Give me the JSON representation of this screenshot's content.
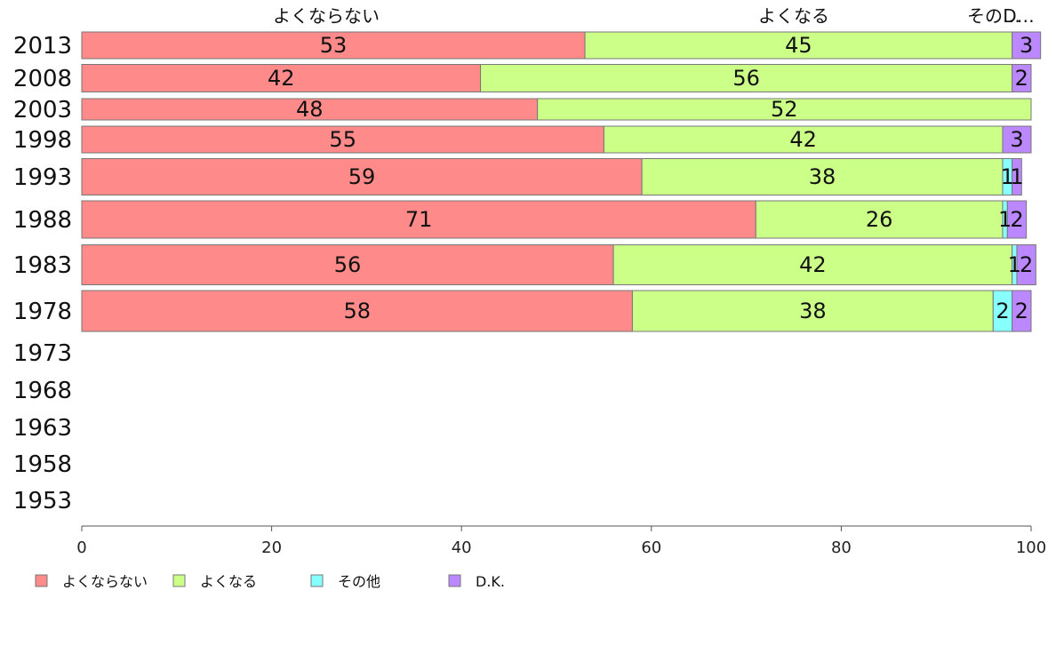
{
  "chart_data": {
    "type": "bar",
    "orientation": "horizontal",
    "stacked": true,
    "categories": [
      "2013",
      "2008",
      "2003",
      "1998",
      "1993",
      "1988",
      "1983",
      "1978",
      "1973",
      "1968",
      "1963",
      "1958",
      "1953"
    ],
    "series": [
      {
        "name": "よくならない",
        "color": "#ff8a8a",
        "values": [
          53,
          42,
          48,
          55,
          59,
          71,
          56,
          58,
          null,
          null,
          null,
          null,
          null
        ]
      },
      {
        "name": "よくなる",
        "color": "#ccff88",
        "values": [
          45,
          56,
          52,
          42,
          38,
          26,
          42,
          38,
          null,
          null,
          null,
          null,
          null
        ]
      },
      {
        "name": "その他",
        "color": "#88ffff",
        "values": [
          0,
          0,
          0,
          0,
          1,
          0.5,
          0.5,
          2,
          null,
          null,
          null,
          null,
          null
        ]
      },
      {
        "name": "D.K.",
        "color": "#bb88ff",
        "values": [
          3,
          2,
          0,
          3,
          1,
          2,
          2,
          2,
          null,
          null,
          null,
          null,
          null
        ]
      }
    ],
    "bar_labels": {
      "よくならない": [
        "53",
        "42",
        "48",
        "55",
        "59",
        "71",
        "56",
        "58"
      ],
      "よくなる": [
        "45",
        "56",
        "52",
        "42",
        "38",
        "26",
        "42",
        "38"
      ],
      "その他": [
        "",
        "",
        "",
        "",
        "1",
        "1",
        "1",
        "2"
      ],
      "D.K.": [
        "3",
        "2",
        "",
        "3",
        "1",
        "2",
        "2",
        "2"
      ]
    },
    "top_labels": [
      "よくならない",
      "よくなる",
      "その…",
      "D…"
    ],
    "xticks": [
      "0",
      "20",
      "40",
      "60",
      "80",
      "100"
    ],
    "xlim": [
      0,
      100
    ],
    "legend": [
      "よくならない",
      "よくなる",
      "その他",
      "D.K."
    ],
    "legend_position": "bottom-left",
    "grid": false
  }
}
